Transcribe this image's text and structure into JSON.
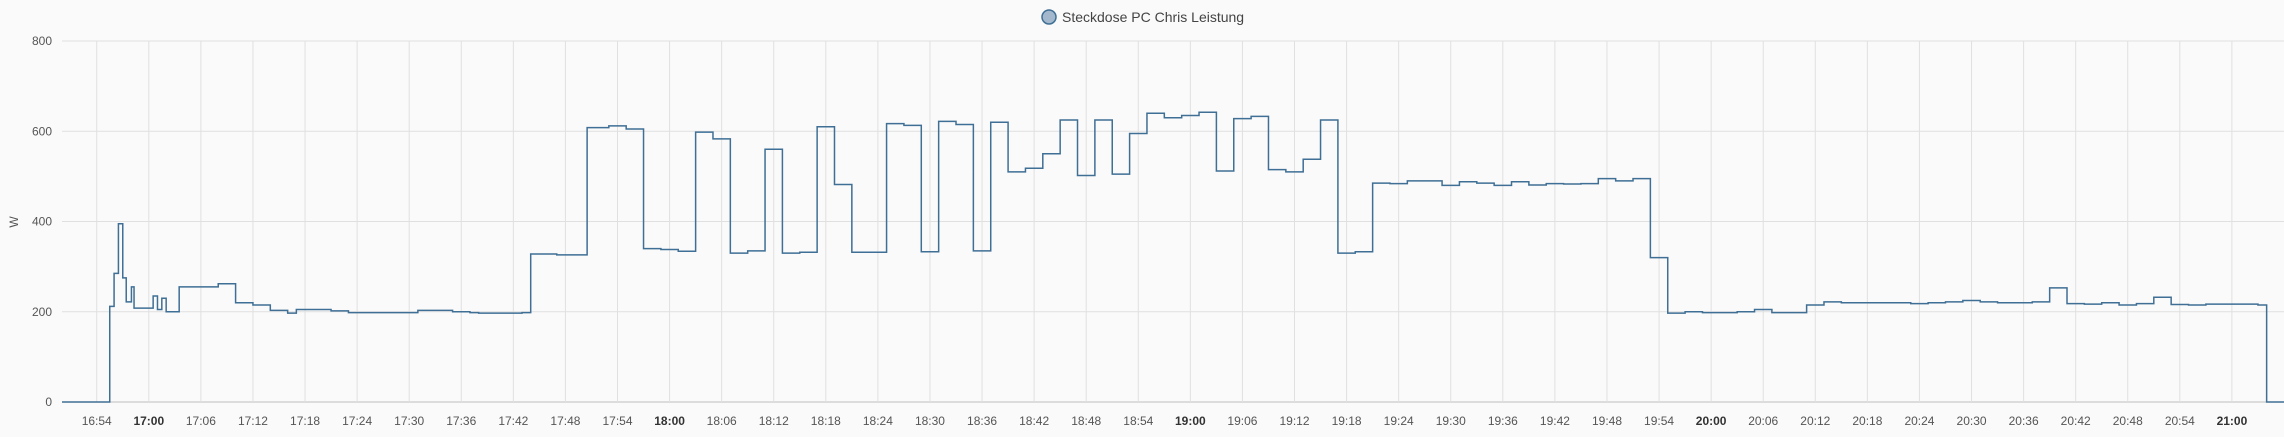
{
  "chart_data": {
    "type": "line",
    "step": true,
    "series": [
      {
        "name": "Steckdose PC Chris Leistung",
        "color": "#3f6f95",
        "marker_fill": "#a3b8cc",
        "points": [
          [
            "16:50",
            0
          ],
          [
            "16:55",
            0
          ],
          [
            "16:55.5",
            212
          ],
          [
            "16:56",
            285
          ],
          [
            "16:56.5",
            395
          ],
          [
            "16:57",
            275
          ],
          [
            "16:57.4",
            222
          ],
          [
            "16:58",
            255
          ],
          [
            "16:58.3",
            208
          ],
          [
            "17:00",
            208
          ],
          [
            "17:00.5",
            235
          ],
          [
            "17:01",
            205
          ],
          [
            "17:01.5",
            230
          ],
          [
            "17:02",
            200
          ],
          [
            "17:03.5",
            255
          ],
          [
            "17:08",
            262
          ],
          [
            "17:10",
            220
          ],
          [
            "17:12",
            215
          ],
          [
            "17:14",
            203
          ],
          [
            "17:16",
            197
          ],
          [
            "17:17",
            205
          ],
          [
            "17:21",
            202
          ],
          [
            "17:23",
            198
          ],
          [
            "17:31",
            203
          ],
          [
            "17:35",
            200
          ],
          [
            "17:37",
            198
          ],
          [
            "17:38",
            197
          ],
          [
            "17:43",
            198
          ],
          [
            "17:44",
            328
          ],
          [
            "17:47",
            326
          ],
          [
            "17:50.5",
            608
          ],
          [
            "17:53",
            612
          ],
          [
            "17:55",
            605
          ],
          [
            "17:57",
            340
          ],
          [
            "17:59",
            338
          ],
          [
            "18:01",
            334
          ],
          [
            "18:03",
            598
          ],
          [
            "18:05",
            583
          ],
          [
            "18:07",
            330
          ],
          [
            "18:09",
            335
          ],
          [
            "18:11",
            560
          ],
          [
            "18:13",
            330
          ],
          [
            "18:15",
            332
          ],
          [
            "18:17",
            610
          ],
          [
            "18:19",
            482
          ],
          [
            "18:21",
            332
          ],
          [
            "18:25",
            617
          ],
          [
            "18:27",
            613
          ],
          [
            "18:29",
            333
          ],
          [
            "18:31",
            622
          ],
          [
            "18:33",
            615
          ],
          [
            "18:35",
            335
          ],
          [
            "18:37",
            620
          ],
          [
            "18:39",
            510
          ],
          [
            "18:41",
            518
          ],
          [
            "18:43",
            550
          ],
          [
            "18:45",
            625
          ],
          [
            "18:47",
            502
          ],
          [
            "18:49",
            625
          ],
          [
            "18:51",
            505
          ],
          [
            "18:53",
            595
          ],
          [
            "18:55",
            640
          ],
          [
            "18:57",
            630
          ],
          [
            "18:59",
            635
          ],
          [
            "19:01",
            642
          ],
          [
            "19:03",
            512
          ],
          [
            "19:05",
            628
          ],
          [
            "19:07",
            633
          ],
          [
            "19:09",
            515
          ],
          [
            "19:11",
            510
          ],
          [
            "19:13",
            538
          ],
          [
            "19:15",
            625
          ],
          [
            "19:17",
            330
          ],
          [
            "19:19",
            333
          ],
          [
            "19:21",
            485
          ],
          [
            "19:23",
            484
          ],
          [
            "19:25",
            490
          ],
          [
            "19:29",
            480
          ],
          [
            "19:31",
            488
          ],
          [
            "19:33",
            485
          ],
          [
            "19:35",
            480
          ],
          [
            "19:37",
            488
          ],
          [
            "19:39",
            481
          ],
          [
            "19:41",
            484
          ],
          [
            "19:43",
            483
          ],
          [
            "19:45",
            484
          ],
          [
            "19:47",
            495
          ],
          [
            "19:49",
            490
          ],
          [
            "19:51",
            495
          ],
          [
            "19:53",
            320
          ],
          [
            "19:55",
            197
          ],
          [
            "19:57",
            200
          ],
          [
            "19:59",
            198
          ],
          [
            "20:03",
            200
          ],
          [
            "20:05",
            205
          ],
          [
            "20:07",
            198
          ],
          [
            "20:11",
            215
          ],
          [
            "20:13",
            222
          ],
          [
            "20:15",
            220
          ],
          [
            "20:23",
            218
          ],
          [
            "20:25",
            220
          ],
          [
            "20:27",
            222
          ],
          [
            "20:29",
            225
          ],
          [
            "20:31",
            222
          ],
          [
            "20:33",
            220
          ],
          [
            "20:37",
            222
          ],
          [
            "20:39",
            253
          ],
          [
            "20:41",
            218
          ],
          [
            "20:43",
            217
          ],
          [
            "20:45",
            220
          ],
          [
            "20:47",
            215
          ],
          [
            "20:49",
            218
          ],
          [
            "20:51",
            232
          ],
          [
            "20:53",
            216
          ],
          [
            "20:55",
            215
          ],
          [
            "20:57",
            217
          ],
          [
            "21:03",
            215
          ],
          [
            "21:04",
            0
          ],
          [
            "21:06",
            0
          ]
        ]
      }
    ],
    "xlim": [
      "16:50",
      "21:06"
    ],
    "ylim": [
      0,
      800
    ],
    "ylabel": "W",
    "y_ticks": [
      0,
      200,
      400,
      600,
      800
    ],
    "x_ticks": [
      {
        "label": "16:54",
        "t": "16:54",
        "bold": false
      },
      {
        "label": "17:00",
        "t": "17:00",
        "bold": true
      },
      {
        "label": "17:06",
        "t": "17:06",
        "bold": false
      },
      {
        "label": "17:12",
        "t": "17:12",
        "bold": false
      },
      {
        "label": "17:18",
        "t": "17:18",
        "bold": false
      },
      {
        "label": "17:24",
        "t": "17:24",
        "bold": false
      },
      {
        "label": "17:30",
        "t": "17:30",
        "bold": false
      },
      {
        "label": "17:36",
        "t": "17:36",
        "bold": false
      },
      {
        "label": "17:42",
        "t": "17:42",
        "bold": false
      },
      {
        "label": "17:48",
        "t": "17:48",
        "bold": false
      },
      {
        "label": "17:54",
        "t": "17:54",
        "bold": false
      },
      {
        "label": "18:00",
        "t": "18:00",
        "bold": true
      },
      {
        "label": "18:06",
        "t": "18:06",
        "bold": false
      },
      {
        "label": "18:12",
        "t": "18:12",
        "bold": false
      },
      {
        "label": "18:18",
        "t": "18:18",
        "bold": false
      },
      {
        "label": "18:24",
        "t": "18:24",
        "bold": false
      },
      {
        "label": "18:30",
        "t": "18:30",
        "bold": false
      },
      {
        "label": "18:36",
        "t": "18:36",
        "bold": false
      },
      {
        "label": "18:42",
        "t": "18:42",
        "bold": false
      },
      {
        "label": "18:48",
        "t": "18:48",
        "bold": false
      },
      {
        "label": "18:54",
        "t": "18:54",
        "bold": false
      },
      {
        "label": "19:00",
        "t": "19:00",
        "bold": true
      },
      {
        "label": "19:06",
        "t": "19:06",
        "bold": false
      },
      {
        "label": "19:12",
        "t": "19:12",
        "bold": false
      },
      {
        "label": "19:18",
        "t": "19:18",
        "bold": false
      },
      {
        "label": "19:24",
        "t": "19:24",
        "bold": false
      },
      {
        "label": "19:30",
        "t": "19:30",
        "bold": false
      },
      {
        "label": "19:36",
        "t": "19:36",
        "bold": false
      },
      {
        "label": "19:42",
        "t": "19:42",
        "bold": false
      },
      {
        "label": "19:48",
        "t": "19:48",
        "bold": false
      },
      {
        "label": "19:54",
        "t": "19:54",
        "bold": false
      },
      {
        "label": "20:00",
        "t": "20:00",
        "bold": true
      },
      {
        "label": "20:06",
        "t": "20:06",
        "bold": false
      },
      {
        "label": "20:12",
        "t": "20:12",
        "bold": false
      },
      {
        "label": "20:18",
        "t": "20:18",
        "bold": false
      },
      {
        "label": "20:24",
        "t": "20:24",
        "bold": false
      },
      {
        "label": "20:30",
        "t": "20:30",
        "bold": false
      },
      {
        "label": "20:36",
        "t": "20:36",
        "bold": false
      },
      {
        "label": "20:42",
        "t": "20:42",
        "bold": false
      },
      {
        "label": "20:48",
        "t": "20:48",
        "bold": false
      },
      {
        "label": "20:54",
        "t": "20:54",
        "bold": false
      },
      {
        "label": "21:00",
        "t": "21:00",
        "bold": true
      }
    ],
    "grid": true,
    "legend": "top-center"
  }
}
